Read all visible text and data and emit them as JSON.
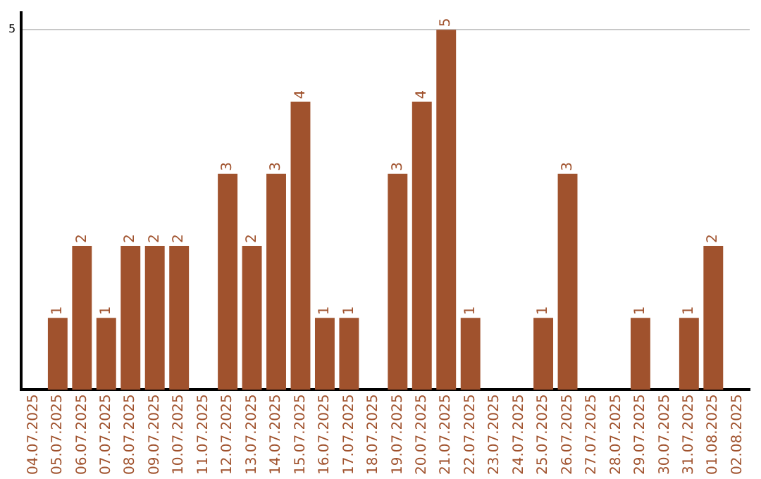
{
  "chart_data": {
    "type": "bar",
    "categories": [
      "04.07.2025",
      "05.07.2025",
      "06.07.2025",
      "07.07.2025",
      "08.07.2025",
      "09.07.2025",
      "10.07.2025",
      "11.07.2025",
      "12.07.2025",
      "13.07.2025",
      "14.07.2025",
      "15.07.2025",
      "16.07.2025",
      "17.07.2025",
      "18.07.2025",
      "19.07.2025",
      "20.07.2025",
      "21.07.2025",
      "22.07.2025",
      "23.07.2025",
      "24.07.2025",
      "25.07.2025",
      "26.07.2025",
      "27.07.2025",
      "28.07.2025",
      "29.07.2025",
      "30.07.2025",
      "31.07.2025",
      "01.08.2025",
      "02.08.2025"
    ],
    "values": [
      0,
      1,
      2,
      1,
      2,
      2,
      2,
      0,
      3,
      2,
      3,
      4,
      1,
      1,
      0,
      3,
      4,
      5,
      1,
      0,
      0,
      1,
      3,
      0,
      0,
      1,
      0,
      1,
      2,
      0
    ],
    "value_labels": [
      null,
      "1",
      "2",
      "1",
      "2",
      "2",
      "2",
      null,
      "3",
      "2",
      "3",
      "4",
      "1",
      "1",
      null,
      "3",
      "4",
      "5",
      "1",
      null,
      null,
      "1",
      "3",
      null,
      null,
      "1",
      null,
      "1",
      "2",
      null
    ],
    "color": "#a0522d",
    "ylim": [
      0,
      5.24
    ],
    "yticks": [
      5
    ],
    "grid": "y",
    "legend": false
  }
}
